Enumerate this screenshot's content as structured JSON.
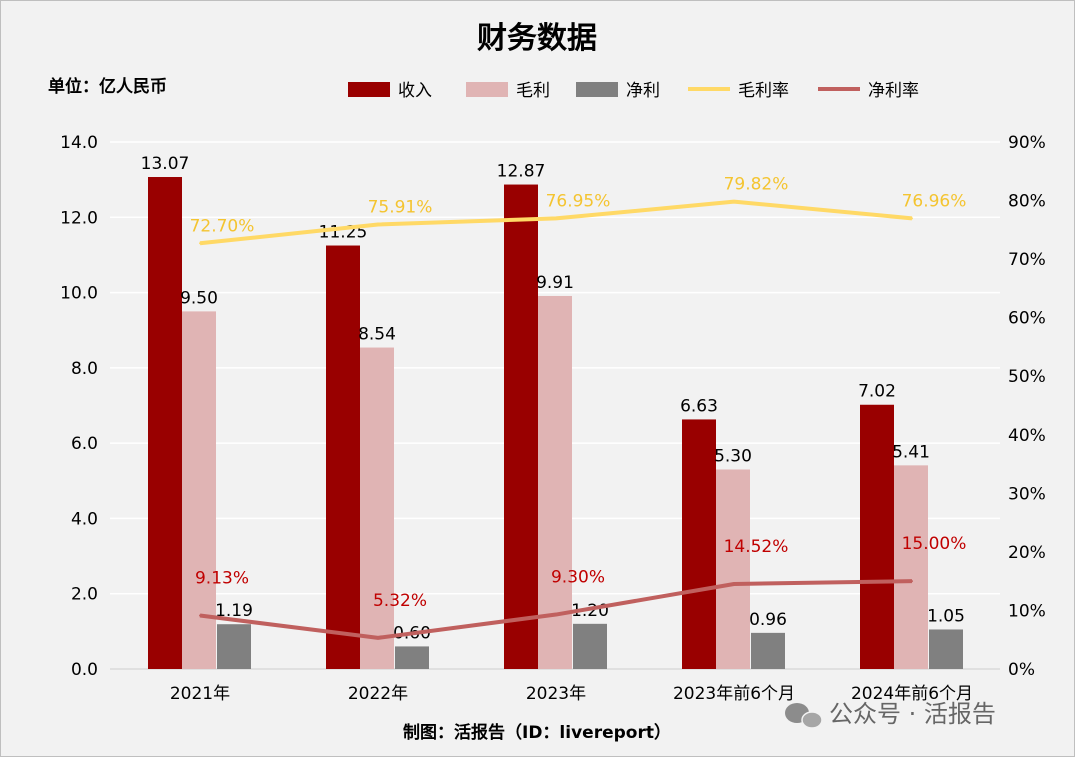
{
  "chart_data": {
    "type": "bar",
    "title": "财务数据",
    "unit_label": "单位：亿人民币",
    "credit": "制图：活报告（ID：livereport）",
    "watermark": "公众号 · 活报告",
    "categories": [
      "2021年",
      "2022年",
      "2023年",
      "2023年前6个月",
      "2024年前6个月"
    ],
    "y_left": {
      "range": [
        0,
        14
      ],
      "ticks": [
        "0.0",
        "2.0",
        "4.0",
        "6.0",
        "8.0",
        "10.0",
        "12.0",
        "14.0"
      ]
    },
    "y_right": {
      "range": [
        0,
        90
      ],
      "ticks": [
        "0%",
        "10%",
        "20%",
        "30%",
        "40%",
        "50%",
        "60%",
        "70%",
        "80%",
        "90%"
      ]
    },
    "grid": true,
    "legend_position": "top",
    "bar_series": [
      {
        "name": "收入",
        "color": "#990000",
        "values": [
          13.07,
          11.25,
          12.87,
          6.63,
          7.02
        ],
        "labels": [
          "13.07",
          "11.25",
          "12.87",
          "6.63",
          "7.02"
        ]
      },
      {
        "name": "毛利",
        "color": "#e0b4b4",
        "values": [
          9.5,
          8.54,
          9.91,
          5.3,
          5.41
        ],
        "labels": [
          "9.50",
          "8.54",
          "9.91",
          "5.30",
          "5.41"
        ]
      },
      {
        "name": "净利",
        "color": "#808080",
        "values": [
          1.19,
          0.6,
          1.2,
          0.96,
          1.05
        ],
        "labels": [
          "1.19",
          "0.60",
          "1.20",
          "0.96",
          "1.05"
        ]
      }
    ],
    "line_series": [
      {
        "name": "毛利率",
        "color": "#ffd966",
        "label_color": "#f4c430",
        "axis": "right",
        "values": [
          72.7,
          75.91,
          76.95,
          79.82,
          76.96
        ],
        "labels": [
          "72.70%",
          "75.91%",
          "76.95%",
          "79.82%",
          "76.96%"
        ]
      },
      {
        "name": "净利率",
        "color": "#c0605e",
        "label_color": "#c00000",
        "axis": "right",
        "values": [
          9.13,
          5.32,
          9.3,
          14.52,
          15.0
        ],
        "labels": [
          "9.13%",
          "5.32%",
          "9.30%",
          "14.52%",
          "15.00%"
        ]
      }
    ]
  }
}
